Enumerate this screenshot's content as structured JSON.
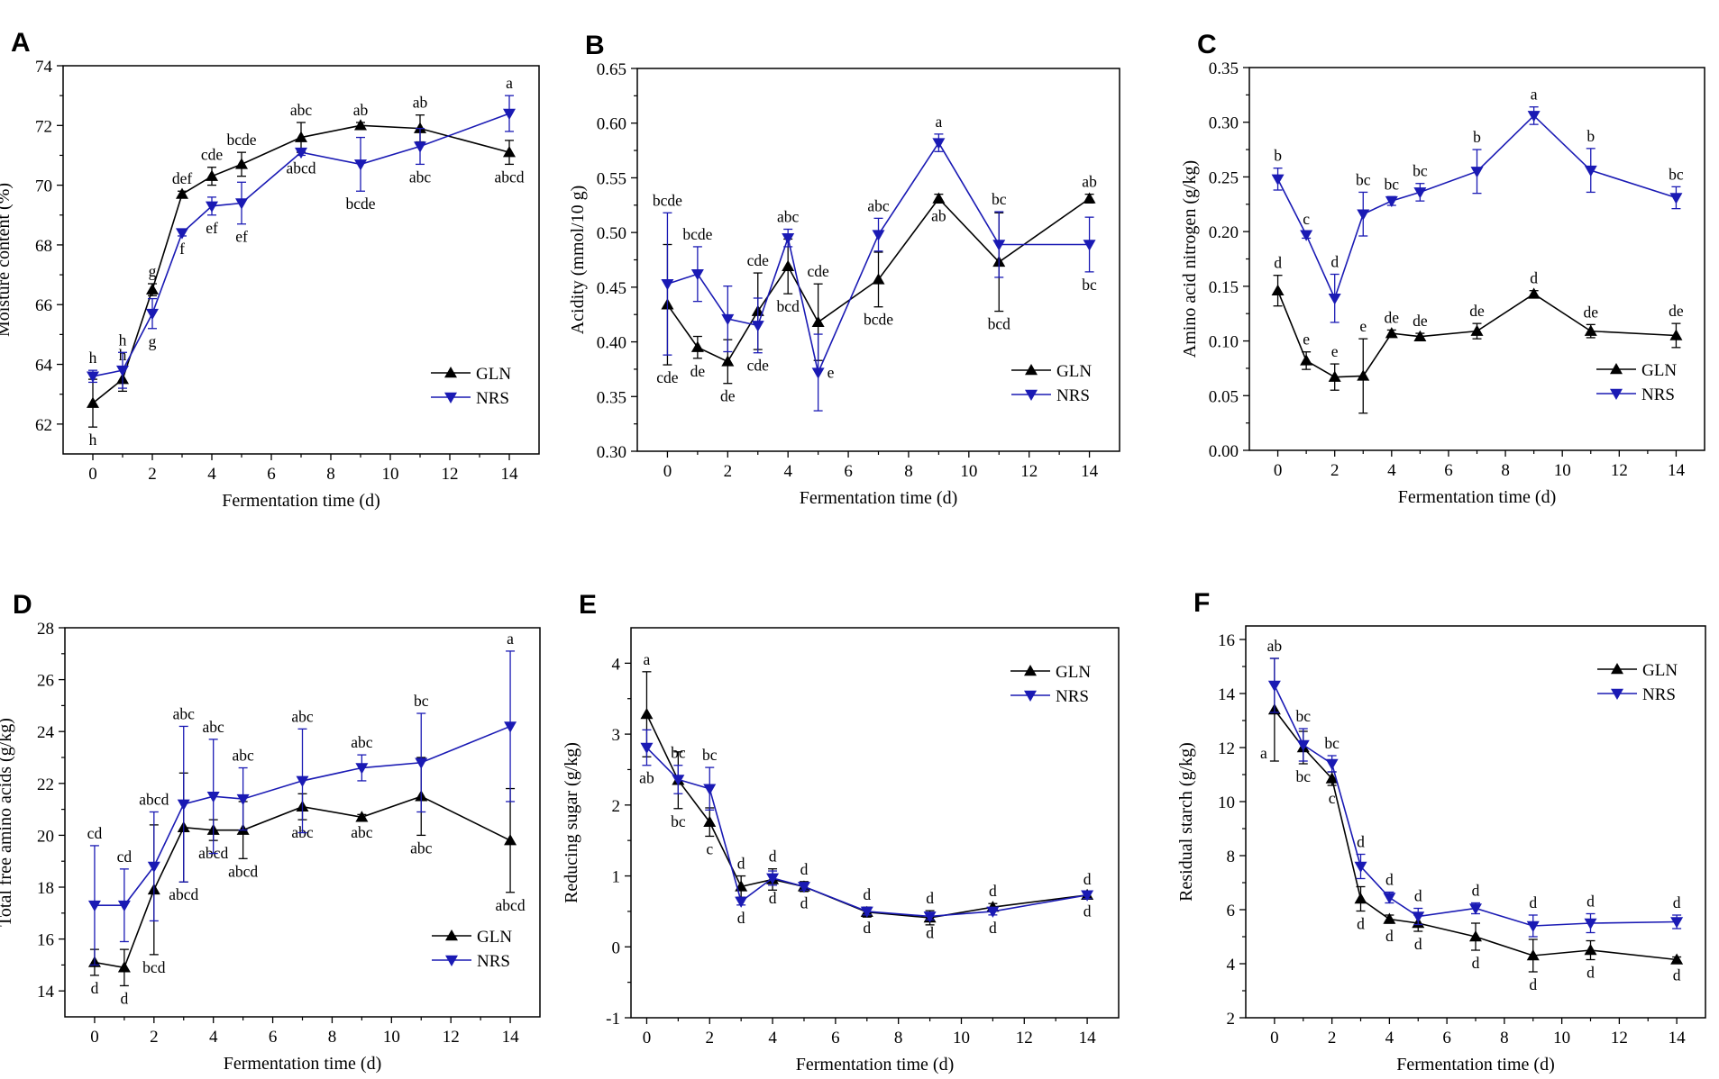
{
  "chart_data": [
    {
      "type": "line",
      "panel": "A",
      "title": "",
      "xlabel": "Fermentation time (d)",
      "ylabel": "Moisture content (%)",
      "xlim": [
        -1,
        15
      ],
      "ylim": [
        61,
        74
      ],
      "xticks": [
        0,
        2,
        4,
        6,
        8,
        10,
        12,
        14
      ],
      "yticks": [
        62,
        64,
        66,
        68,
        70,
        72,
        74
      ],
      "x": [
        0,
        1,
        2,
        3,
        4,
        5,
        7,
        9,
        11,
        14
      ],
      "legend_position": "bottom-right",
      "series": [
        {
          "name": "GLN",
          "color": "#000000",
          "marker": "triangle-up",
          "values": [
            62.7,
            63.5,
            66.5,
            69.7,
            70.3,
            70.7,
            71.6,
            72.0,
            71.9,
            71.1
          ],
          "errors": [
            0.8,
            0.4,
            0.2,
            0.1,
            0.3,
            0.4,
            0.5,
            0.1,
            0.45,
            0.4
          ],
          "letters": [
            "h",
            "h",
            "g",
            "def",
            "cde",
            "bcde",
            "abc",
            "ab",
            "ab",
            "abcd"
          ],
          "letter_pos": [
            "below",
            "above",
            "above",
            "above",
            "above",
            "above",
            "above",
            "above",
            "above",
            "below"
          ]
        },
        {
          "name": "NRS",
          "color": "#1a1ab4",
          "marker": "triangle-down",
          "values": [
            63.6,
            63.8,
            65.7,
            68.4,
            69.3,
            69.4,
            71.1,
            70.7,
            71.3,
            72.4
          ],
          "errors": [
            0.2,
            0.6,
            0.5,
            0.1,
            0.3,
            0.7,
            0.1,
            0.9,
            0.6,
            0.6
          ],
          "letters": [
            "h",
            "h",
            "g",
            "f",
            "ef",
            "ef",
            "abcd",
            "bcde",
            "abc",
            "a"
          ],
          "letter_pos": [
            "above",
            "above",
            "below",
            "below",
            "below",
            "below",
            "below",
            "below",
            "below",
            "above"
          ]
        }
      ]
    },
    {
      "type": "line",
      "panel": "B",
      "title": "",
      "xlabel": "Fermentation time (d)",
      "ylabel": "Acidity (mmol/10 g)",
      "xlim": [
        -1,
        15
      ],
      "ylim": [
        0.3,
        0.65
      ],
      "xticks": [
        0,
        2,
        4,
        6,
        8,
        10,
        12,
        14
      ],
      "yticks": [
        0.3,
        0.35,
        0.4,
        0.45,
        0.5,
        0.55,
        0.6,
        0.65
      ],
      "tick_decimals": 2,
      "x": [
        0,
        1,
        2,
        3,
        4,
        5,
        7,
        9,
        11,
        14
      ],
      "legend_position": "bottom-right",
      "series": [
        {
          "name": "GLN",
          "color": "#000000",
          "marker": "triangle-up",
          "values": [
            0.434,
            0.395,
            0.382,
            0.428,
            0.469,
            0.418,
            0.457,
            0.531,
            0.473,
            0.531
          ],
          "errors": [
            0.055,
            0.01,
            0.02,
            0.035,
            0.025,
            0.035,
            0.025,
            0.004,
            0.045,
            0.004
          ],
          "letters": [
            "cde",
            "de",
            "de",
            "cde",
            "bcd",
            "cde",
            "bcde",
            "ab",
            "bcd",
            "ab"
          ],
          "letter_pos": [
            "below",
            "below",
            "below",
            "above",
            "below",
            "above",
            "below",
            "below",
            "below",
            "above"
          ]
        },
        {
          "name": "NRS",
          "color": "#1a1ab4",
          "marker": "triangle-down",
          "values": [
            0.453,
            0.462,
            0.421,
            0.415,
            0.495,
            0.372,
            0.498,
            0.582,
            0.489,
            0.489
          ],
          "errors": [
            0.065,
            0.025,
            0.03,
            0.025,
            0.008,
            0.035,
            0.015,
            0.008,
            0.03,
            0.025
          ],
          "letters": [
            "bcde",
            "bcde",
            "",
            "cde",
            "abc",
            "e",
            "abc",
            "a",
            "bc",
            "bc"
          ],
          "letter_pos": [
            "above",
            "above",
            "above",
            "below",
            "above",
            "right",
            "above",
            "above",
            "above",
            "below"
          ]
        }
      ]
    },
    {
      "type": "line",
      "panel": "C",
      "title": "",
      "xlabel": "Fermentation time (d)",
      "ylabel": "Amino acid nitrogen (g/kg)",
      "xlim": [
        -1,
        15
      ],
      "ylim": [
        0,
        0.35
      ],
      "xticks": [
        0,
        2,
        4,
        6,
        8,
        10,
        12,
        14
      ],
      "yticks": [
        0.0,
        0.05,
        0.1,
        0.15,
        0.2,
        0.25,
        0.3,
        0.35
      ],
      "tick_decimals": 2,
      "x": [
        0,
        1,
        2,
        3,
        4,
        5,
        7,
        9,
        11,
        14
      ],
      "legend_position": "bottom-right",
      "series": [
        {
          "name": "GLN",
          "color": "#000000",
          "marker": "triangle-up",
          "values": [
            0.146,
            0.082,
            0.067,
            0.068,
            0.107,
            0.104,
            0.109,
            0.143,
            0.109,
            0.105
          ],
          "errors": [
            0.014,
            0.008,
            0.012,
            0.034,
            0.003,
            0.003,
            0.007,
            0.003,
            0.006,
            0.011
          ],
          "letters": [
            "d",
            "e",
            "e",
            "e",
            "de",
            "de",
            "de",
            "d",
            "de",
            "de"
          ],
          "letter_pos": [
            "above",
            "above",
            "above",
            "above",
            "above",
            "above",
            "above",
            "above",
            "above",
            "above"
          ]
        },
        {
          "name": "NRS",
          "color": "#1a1ab4",
          "marker": "triangle-down",
          "values": [
            0.248,
            0.197,
            0.139,
            0.216,
            0.228,
            0.236,
            0.255,
            0.306,
            0.256,
            0.231
          ],
          "errors": [
            0.01,
            0.003,
            0.022,
            0.02,
            0.004,
            0.008,
            0.02,
            0.008,
            0.02,
            0.01
          ],
          "letters": [
            "b",
            "c",
            "d",
            "bc",
            "bc",
            "bc",
            "b",
            "a",
            "b",
            "bc"
          ],
          "letter_pos": [
            "above",
            "above",
            "above",
            "above",
            "above",
            "above",
            "above",
            "above",
            "above",
            "above"
          ]
        }
      ]
    },
    {
      "type": "line",
      "panel": "D",
      "title": "",
      "xlabel": "Fermentation time (d)",
      "ylabel": "Total free amino acids (g/kg)",
      "xlim": [
        -1,
        15
      ],
      "ylim": [
        13,
        28
      ],
      "xticks": [
        0,
        2,
        4,
        6,
        8,
        10,
        12,
        14
      ],
      "yticks": [
        14,
        16,
        18,
        20,
        22,
        24,
        26,
        28
      ],
      "x": [
        0,
        1,
        2,
        3,
        4,
        5,
        7,
        9,
        11,
        14
      ],
      "legend_position": "bottom-right",
      "series": [
        {
          "name": "GLN",
          "color": "#000000",
          "marker": "triangle-up",
          "values": [
            15.1,
            14.9,
            17.9,
            20.3,
            20.2,
            20.2,
            21.1,
            20.7,
            21.5,
            19.8
          ],
          "errors": [
            0.5,
            0.7,
            2.5,
            2.1,
            0.4,
            1.1,
            0.5,
            0.1,
            1.5,
            2.0
          ],
          "letters": [
            "d",
            "d",
            "bcd",
            "abcd",
            "abcd",
            "abcd",
            "abc",
            "abc",
            "abc",
            "abcd"
          ],
          "letter_pos": [
            "below",
            "below",
            "below",
            "below",
            "below",
            "below",
            "below",
            "below",
            "below",
            "below"
          ]
        },
        {
          "name": "NRS",
          "color": "#1a1ab4",
          "marker": "triangle-down",
          "values": [
            17.3,
            17.3,
            18.8,
            21.2,
            21.5,
            21.4,
            22.1,
            22.6,
            22.8,
            24.2
          ],
          "errors": [
            2.3,
            1.4,
            2.1,
            3.0,
            2.2,
            1.2,
            2.0,
            0.5,
            1.9,
            2.9
          ],
          "letters": [
            "cd",
            "cd",
            "abcd",
            "abc",
            "abc",
            "abc",
            "abc",
            "abc",
            "bc",
            "a"
          ],
          "letter_pos": [
            "above",
            "above",
            "above",
            "above",
            "above",
            "above",
            "above",
            "above",
            "above",
            "above"
          ]
        }
      ]
    },
    {
      "type": "line",
      "panel": "E",
      "title": "",
      "xlabel": "Fermentation time (d)",
      "ylabel": "Reducing sugar (g/kg)",
      "xlim": [
        -0.5,
        15
      ],
      "ylim": [
        -1,
        4.5
      ],
      "xticks": [
        0,
        2,
        4,
        6,
        8,
        10,
        12,
        14
      ],
      "yticks": [
        -1,
        0,
        1,
        2,
        3,
        4
      ],
      "x": [
        0,
        1,
        2,
        3,
        4,
        5,
        7,
        9,
        11,
        14
      ],
      "legend_position": "top-right",
      "series": [
        {
          "name": "GLN",
          "color": "#000000",
          "marker": "triangle-up",
          "values": [
            3.28,
            2.35,
            1.76,
            0.85,
            0.95,
            0.85,
            0.49,
            0.41,
            0.56,
            0.73
          ],
          "errors": [
            0.6,
            0.4,
            0.2,
            0.15,
            0.15,
            0.07,
            0.07,
            0.1,
            0.05,
            0.05
          ],
          "letters": [
            "a",
            "bc",
            "c",
            "d",
            "d",
            "d",
            "d",
            "d",
            "d",
            "d"
          ],
          "letter_pos": [
            "above",
            "below",
            "below",
            "above",
            "above",
            "above",
            "above",
            "above",
            "above",
            "above"
          ]
        },
        {
          "name": "NRS",
          "color": "#1a1ab4",
          "marker": "triangle-down",
          "values": [
            2.81,
            2.36,
            2.23,
            0.64,
            0.97,
            0.85,
            0.5,
            0.43,
            0.5,
            0.73
          ],
          "errors": [
            0.25,
            0.2,
            0.3,
            0.05,
            0.1,
            0.05,
            0.05,
            0.05,
            0.05,
            0.05
          ],
          "letters": [
            "ab",
            "bc",
            "bc",
            "d",
            "d",
            "d",
            "d",
            "d",
            "d",
            "d"
          ],
          "letter_pos": [
            "below",
            "above",
            "above",
            "below",
            "below",
            "below",
            "below",
            "below",
            "below",
            "below"
          ]
        }
      ]
    },
    {
      "type": "line",
      "panel": "F",
      "title": "",
      "xlabel": "Fermentation time (d)",
      "ylabel": "Residual starch (g/kg)",
      "xlim": [
        -1,
        15
      ],
      "ylim": [
        2,
        16.5
      ],
      "xticks": [
        0,
        2,
        4,
        6,
        8,
        10,
        12,
        14
      ],
      "yticks": [
        2,
        4,
        6,
        8,
        10,
        12,
        14,
        16
      ],
      "x": [
        0,
        1,
        2,
        3,
        4,
        5,
        7,
        9,
        11,
        14
      ],
      "legend_position": "top-right",
      "series": [
        {
          "name": "GLN",
          "color": "#000000",
          "marker": "triangle-up",
          "values": [
            13.4,
            12.0,
            10.85,
            6.4,
            5.65,
            5.5,
            5.0,
            4.3,
            4.5,
            4.15
          ],
          "errors": [
            1.9,
            0.6,
            0.25,
            0.45,
            0.15,
            0.3,
            0.5,
            0.6,
            0.35,
            0.1
          ],
          "letters": [
            "a",
            "bc",
            "c",
            "d",
            "d",
            "d",
            "d",
            "d",
            "d",
            "d"
          ],
          "letter_pos": [
            "below-left",
            "below",
            "below",
            "below",
            "below",
            "below",
            "below",
            "below",
            "below",
            "below"
          ]
        },
        {
          "name": "NRS",
          "color": "#1a1ab4",
          "marker": "triangle-down",
          "values": [
            14.3,
            12.1,
            11.4,
            7.6,
            6.45,
            5.75,
            6.05,
            5.4,
            5.5,
            5.55
          ],
          "errors": [
            1.0,
            0.6,
            0.3,
            0.45,
            0.2,
            0.3,
            0.2,
            0.4,
            0.35,
            0.25
          ],
          "letters": [
            "ab",
            "bc",
            "bc",
            "d",
            "d",
            "d",
            "d",
            "d",
            "d",
            "d"
          ],
          "letter_pos": [
            "above",
            "above",
            "above",
            "above",
            "above",
            "above",
            "above",
            "above",
            "above",
            "above"
          ]
        }
      ]
    }
  ]
}
